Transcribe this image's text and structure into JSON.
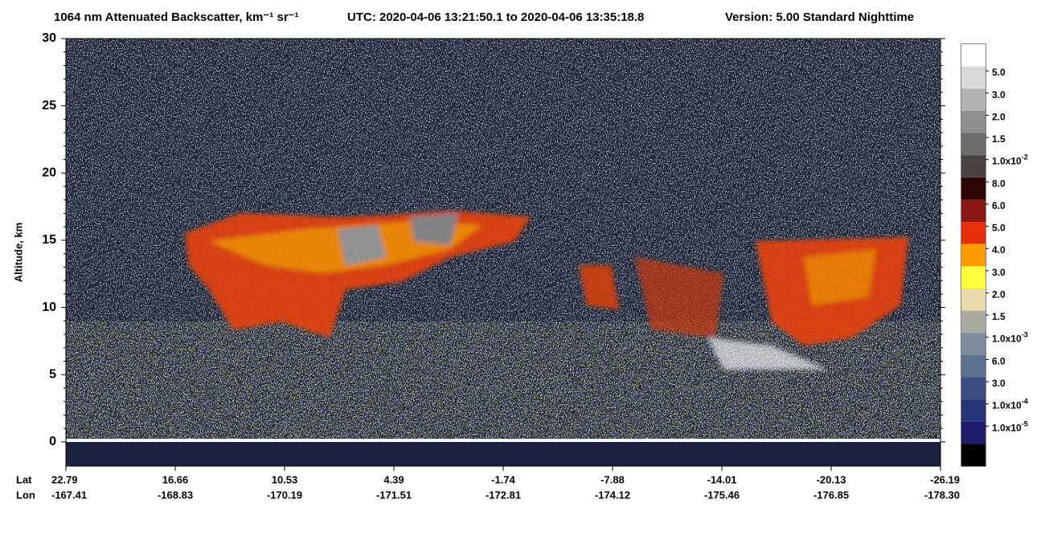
{
  "chart_data": {
    "type": "curtain",
    "title": "1064 nm Attenuated Backscatter, km⁻¹ sr⁻¹",
    "utc": "UTC:  2020-04-06 13:21:50.1  to  2020-04-06 13:35:18.8",
    "version": "Version: 5.00  Standard  Nighttime",
    "ylabel": "Altitude, km",
    "ylim": [
      -1.8,
      30
    ],
    "yticks": [
      0,
      5,
      10,
      15,
      20,
      25,
      30
    ],
    "lat_label": "Lat",
    "lon_label": "Lon",
    "lat": [
      22.79,
      16.66,
      10.53,
      4.39,
      -1.74,
      -7.88,
      -14.01,
      -20.13,
      -26.19
    ],
    "lon": [
      -167.41,
      -168.83,
      -170.19,
      -171.51,
      -172.81,
      -174.12,
      -175.46,
      -176.85,
      {
        "value": -178.3,
        "label": "-178.30"
      }
    ],
    "colorbar": {
      "colors": [
        "#ffffff",
        "#d9d9d9",
        "#b3b3b3",
        "#8f8f8f",
        "#6b6b6b",
        "#4a4240",
        "#2e0606",
        "#8a1712",
        "#e8300c",
        "#ff9c00",
        "#ffff3c",
        "#eadcae",
        "#a9aba1",
        "#7d8c9c",
        "#5a7190",
        "#3a4d80",
        "#26357a",
        "#1c1c6a",
        "#000000"
      ],
      "labels": [
        {
          "text": "5.0"
        },
        {
          "text": "3.0"
        },
        {
          "text": "2.0"
        },
        {
          "text": "1.5"
        },
        {
          "text": "1.0x10",
          "sup": "-2"
        },
        {
          "text": "8.0"
        },
        {
          "text": "6.0"
        },
        {
          "text": "5.0"
        },
        {
          "text": "4.0"
        },
        {
          "text": "3.0"
        },
        {
          "text": "2.0"
        },
        {
          "text": "1.5"
        },
        {
          "text": "1.0x10",
          "sup": "-3"
        },
        {
          "text": "6.0"
        },
        {
          "text": "3.0"
        },
        {
          "text": "1.0x10",
          "sup": "-4"
        },
        {
          "text": "1.0x10",
          "sup": "-5"
        }
      ]
    }
  }
}
